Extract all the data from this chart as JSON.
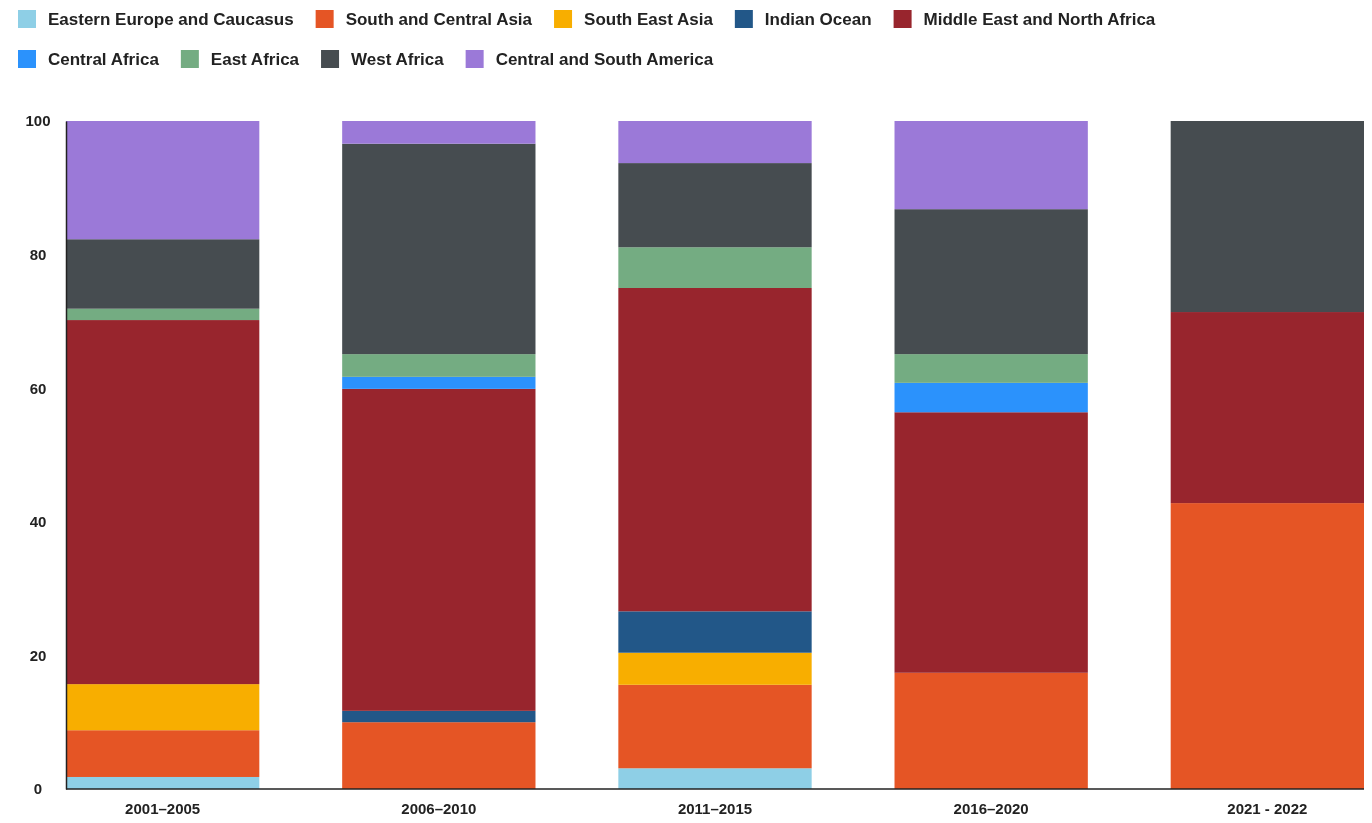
{
  "chart_data": {
    "type": "bar",
    "stacked": true,
    "legend": "top",
    "grid": false,
    "categories": [
      "2001–2005",
      "2006–2010",
      "2011–2015",
      "2016–2020",
      "2021 - 2022"
    ],
    "ylim": [
      0,
      100
    ],
    "yticks": [
      0,
      20,
      40,
      60,
      80,
      100
    ],
    "series": [
      {
        "name": "Eastern Europe and Caucasus",
        "color": "#8ecfe6",
        "values": [
          1.8,
          0,
          3.1,
          0,
          0
        ]
      },
      {
        "name": "South and Central Asia",
        "color": "#e55525",
        "values": [
          7.0,
          10.0,
          12.5,
          17.4,
          42.8
        ]
      },
      {
        "name": "South East Asia",
        "color": "#f8ae00",
        "values": [
          6.9,
          0,
          4.8,
          0,
          0
        ]
      },
      {
        "name": "Indian Ocean",
        "color": "#225788",
        "values": [
          0,
          1.7,
          6.2,
          0,
          0
        ]
      },
      {
        "name": "Middle East and North Africa",
        "color": "#98252d",
        "values": [
          54.5,
          48.2,
          48.4,
          39.0,
          28.6
        ]
      },
      {
        "name": "Central Africa",
        "color": "#2b92fc",
        "values": [
          0,
          1.8,
          0,
          4.4,
          0
        ]
      },
      {
        "name": "East Africa",
        "color": "#74ac82",
        "values": [
          1.7,
          3.4,
          6.1,
          4.3,
          0
        ]
      },
      {
        "name": "West Africa",
        "color": "#464c50",
        "values": [
          10.4,
          31.5,
          12.6,
          21.7,
          28.6
        ]
      },
      {
        "name": "Central and South America",
        "color": "#9b79d8",
        "values": [
          17.7,
          3.4,
          6.3,
          13.2,
          0
        ]
      }
    ]
  }
}
